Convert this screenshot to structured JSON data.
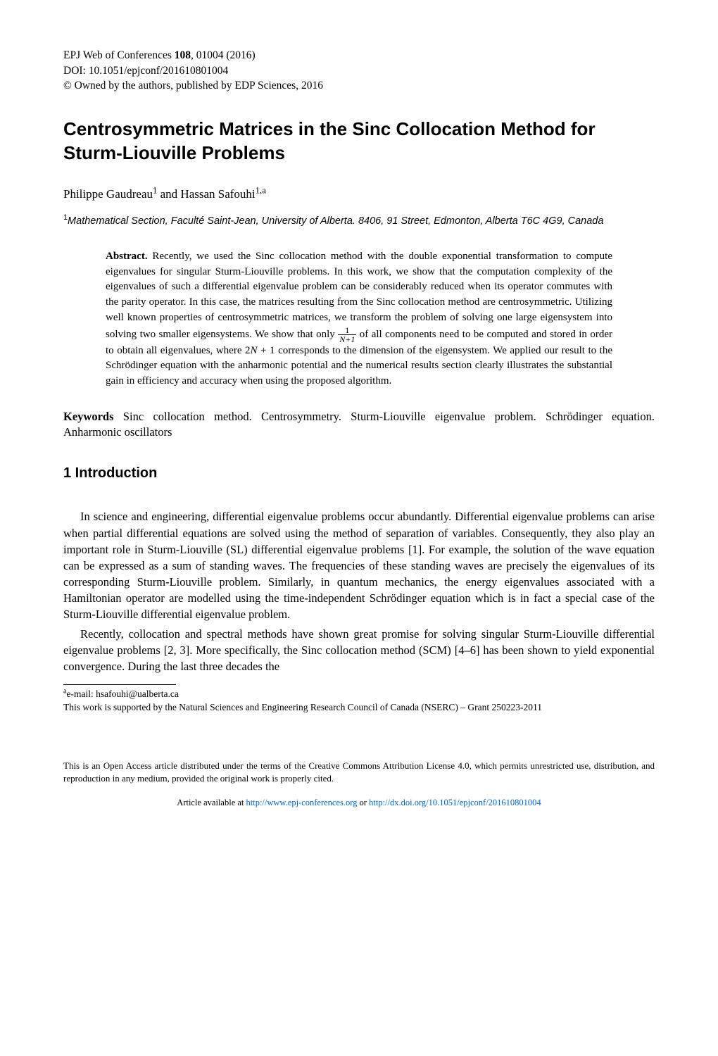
{
  "meta": {
    "journal_line": "EPJ Web of Conferences ",
    "volume": "108",
    "article_line_rest": ", 01004 (2016)",
    "doi_line": "DOI: 10.1051/epjconf/201610801004",
    "copyright_line": "© Owned by the authors, published by EDP Sciences, 2016"
  },
  "title": "Centrosymmetric Matrices in the Sinc Collocation Method for Sturm-Liouville Problems",
  "authors_html": "Philippe Gaudreau<sup>1</sup>  and  Hassan Safouhi<sup>1,a</sup>",
  "author1": "Philippe Gaudreau",
  "author1_sup": "1",
  "and": "  and  ",
  "author2": "Hassan Safouhi",
  "author2_sup": "1,a",
  "affiliation_sup": "1",
  "affiliation": "Mathematical Section, Faculté Saint-Jean, University of Alberta. 8406, 91 Street, Edmonton, Alberta T6C 4G9, Canada",
  "abstract": {
    "heading": "Abstract.",
    "part1": " Recently, we used the Sinc collocation method with the double exponential transformation to compute eigenvalues for singular Sturm-Liouville problems. In this work, we show that the computation complexity of the eigenvalues of such a differential eigenvalue problem can be considerably reduced when its operator commutes with the parity operator. In this case, the matrices resulting from the Sinc collocation method are centrosymmetric. Utilizing well known properties of centrosymmetric matrices, we transform the problem of solving one large eigensystem into solving two smaller eigensystems. We show that only ",
    "frac_num": "1",
    "frac_den": "N+1",
    "part2": " of all components need to be computed and stored in order to obtain all eigenvalues, where 2",
    "N_plus_1": "N",
    "part3": " + 1 corresponds to the dimension of the eigensystem. We applied our result to the Schrödinger equation with the anharmonic potential and the numerical results section clearly illustrates the substantial gain in efficiency and accuracy when using the proposed algorithm."
  },
  "keywords": {
    "label": "Keywords",
    "text": "   Sinc collocation method.   Centrosymmetry.   Sturm-Liouville eigenvalue problem. Schrödinger equation. Anharmonic oscillators"
  },
  "section1": {
    "heading": "1  Introduction",
    "para1": "In science and engineering, differential eigenvalue problems occur abundantly. Differential eigenvalue problems can arise when partial differential equations are solved using the method of separation of variables. Consequently, they also play an important role in Sturm-Liouville (SL) differential eigenvalue problems [1]. For example, the solution of the wave equation can be expressed as a sum of standing waves. The frequencies of these standing waves are precisely the eigenvalues of its corresponding Sturm-Liouville problem. Similarly, in quantum mechanics, the energy eigenvalues associated with a Hamiltonian operator are modelled using the time-independent Schrödinger equation which is in fact a special case of the Sturm-Liouville differential eigenvalue problem.",
    "para2": "Recently, collocation and spectral methods have shown great promise for solving singular Sturm-Liouville differential eigenvalue problems [2, 3].  More specifically, the Sinc collocation method (SCM) [4–6] has been shown to yield exponential convergence.  During the last three decades the"
  },
  "footnotes": {
    "a_sup": "a",
    "a_text": "e-mail: hsafouhi@ualberta.ca",
    "funding": "This work is supported by the Natural Sciences and Engineering Research Council of Canada (NSERC) – Grant 250223-2011"
  },
  "license": "This is an Open Access article distributed under the terms of the Creative Commons Attribution License 4.0, which permits unrestricted use, distribution, and reproduction in any medium, provided the original work is properly cited.",
  "article_available": {
    "prefix": "Article available at ",
    "url1": "http://www.epj-conferences.org",
    "mid": " or ",
    "url2": "http://dx.doi.org/10.1051/epjconf/201610801004"
  },
  "colors": {
    "text": "#000000",
    "background": "#ffffff",
    "link": "#0066cc"
  },
  "typography": {
    "body_fontsize_pt": 12,
    "title_fontsize_pt": 18,
    "section_fontsize_pt": 15,
    "footnote_fontsize_pt": 10,
    "font_family_body": "Times New Roman",
    "font_family_headings": "Arial"
  }
}
